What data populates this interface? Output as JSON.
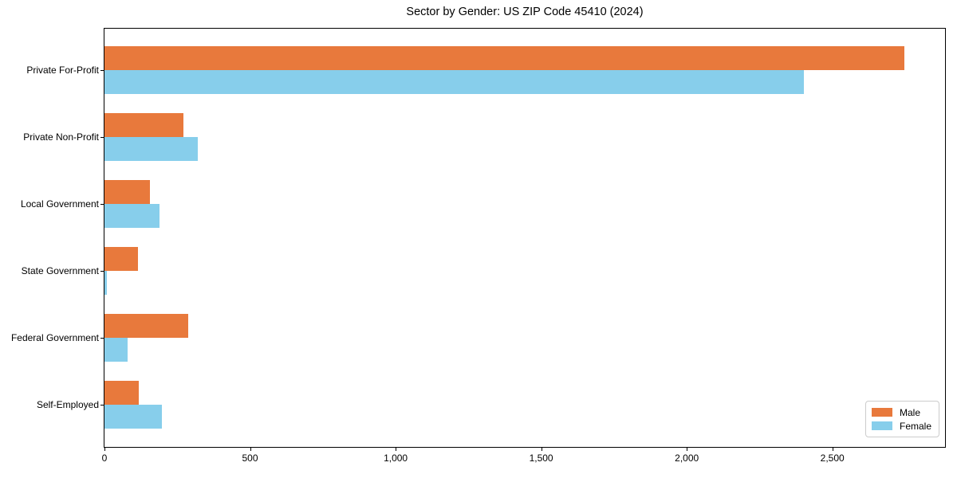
{
  "figure": {
    "title": "Sector by Gender: US ZIP Code 45410 (2024)",
    "background_color": "#ffffff",
    "spine_color": "#000000"
  },
  "legend": {
    "position": "lower right",
    "entries": [
      {
        "label": "Male",
        "color": "#e8793c"
      },
      {
        "label": "Female",
        "color": "#87ceeb"
      }
    ]
  },
  "chart_data": {
    "type": "bar",
    "orientation": "horizontal",
    "title": "Sector by Gender: US ZIP Code 45410 (2024)",
    "categories": [
      "Private For-Profit",
      "Private Non-Profit",
      "Local Government",
      "State Government",
      "Federal Government",
      "Self-Employed"
    ],
    "series": [
      {
        "name": "Male",
        "color": "#e8793c",
        "values": [
          2748,
          271,
          155,
          116,
          287,
          119
        ]
      },
      {
        "name": "Female",
        "color": "#87ceeb",
        "values": [
          2401,
          321,
          190,
          9,
          79,
          196
        ]
      }
    ],
    "xlabel": "",
    "ylabel": "",
    "xlim": [
      0,
      2887
    ],
    "x_ticks": [
      0,
      500,
      1000,
      1500,
      2000,
      2500
    ],
    "x_tick_labels": [
      "0",
      "500",
      "1,000",
      "1,500",
      "2,000",
      "2,500"
    ],
    "grid": false,
    "legend_position": "lower right"
  }
}
